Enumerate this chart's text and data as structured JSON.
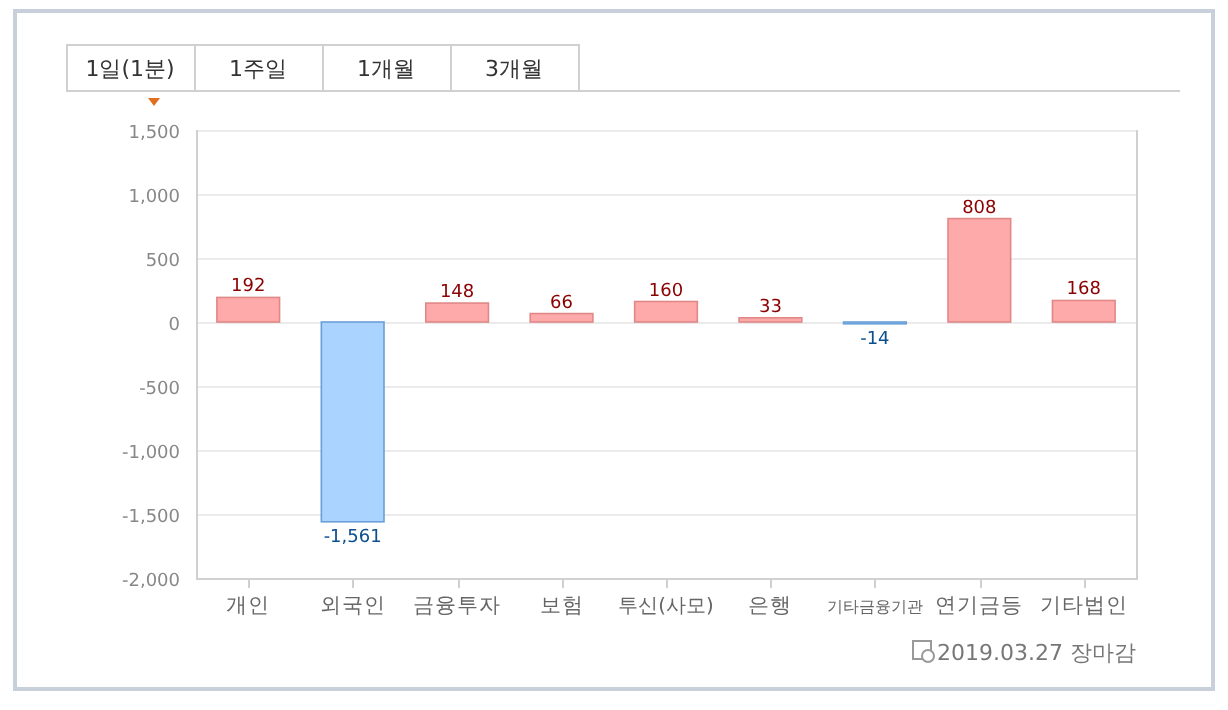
{
  "chart_data": {
    "type": "bar",
    "categories": [
      "개인",
      "외국인",
      "금융투자",
      "보험",
      "투신(사모)",
      "은행",
      "기타금융기관",
      "연기금등",
      "기타법인"
    ],
    "values": [
      192,
      -1561,
      148,
      66,
      160,
      33,
      -14,
      808,
      168
    ],
    "colors": [
      "#ffaaaa",
      "#aad4ff",
      "#ffaaaa",
      "#ffaaaa",
      "#ffaaaa",
      "#ffaaaa",
      "#aad4ff",
      "#ffaaaa",
      "#ffaaaa"
    ],
    "value_labels": [
      "192",
      "-1,561",
      "148",
      "66",
      "160",
      "33",
      "-14",
      "808",
      "168"
    ],
    "ylim": [
      -2000,
      1500
    ],
    "yticks": [
      {
        "value": -2000,
        "label": "-2,000"
      },
      {
        "value": -1500,
        "label": "-1,500"
      },
      {
        "value": -1000,
        "label": "-1,000"
      },
      {
        "value": -500,
        "label": "-500"
      },
      0,
      500,
      {
        "value": 1000,
        "label": "1,000"
      },
      {
        "value": 1500,
        "label": "1,500"
      }
    ],
    "grid": "y",
    "annotations": [
      "1일(1분)",
      "1주일",
      "1개월",
      "3개월",
      "2019.03.27 장마감"
    ]
  }
}
